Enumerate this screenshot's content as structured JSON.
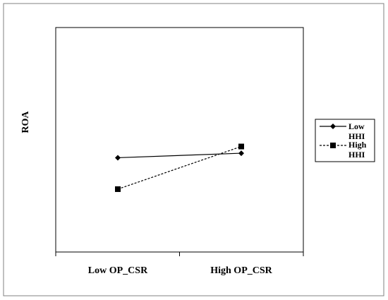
{
  "chart_data": {
    "type": "line",
    "title": "",
    "xlabel": "",
    "ylabel": "ROA",
    "categories": [
      "Low OP_CSR",
      "High OP_CSR"
    ],
    "series": [
      {
        "name_line1": "Low",
        "name_line2": "HHI",
        "marker": "diamond",
        "line_style": "solid",
        "color": "#000000",
        "values": [
          0.42,
          0.44
        ]
      },
      {
        "name_line1": "High",
        "name_line2": "HHI",
        "marker": "square",
        "line_style": "dashed",
        "color": "#000000",
        "values": [
          0.28,
          0.47
        ]
      }
    ],
    "ylim": [
      0,
      1
    ],
    "grid": false,
    "legend_position": "right"
  }
}
